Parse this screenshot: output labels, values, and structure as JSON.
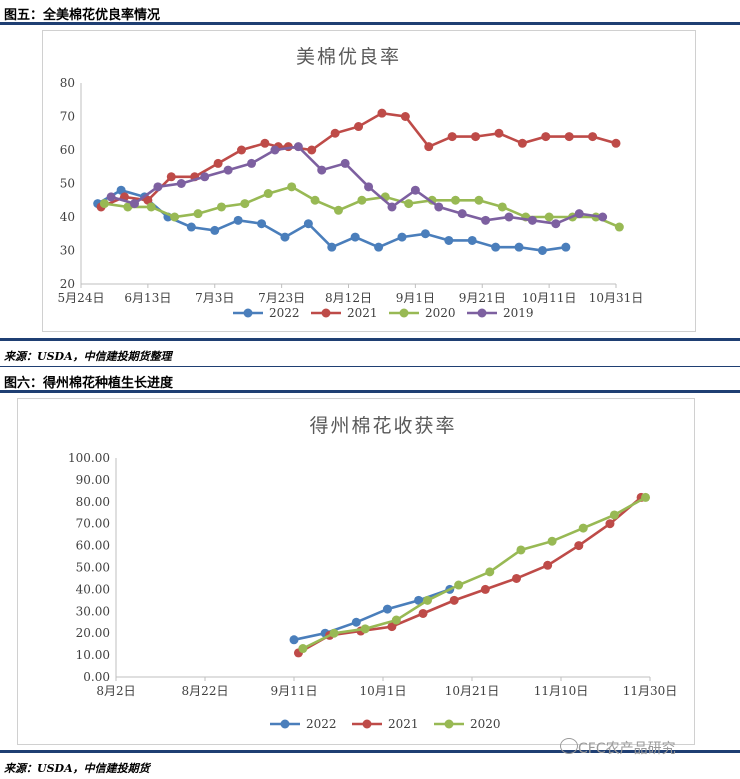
{
  "section1": {
    "figure_label": "图五：全美棉花优良率情况",
    "source": "来源：USDA，中信建投期货整理"
  },
  "section2": {
    "figure_label": "图六：得州棉花种植生长进度",
    "source": "来源：USDA，中信建投期货"
  },
  "watermark": "CFC农产品研究",
  "chart_data": [
    {
      "type": "line",
      "title": "美棉优良率",
      "xlabel": "",
      "ylabel": "",
      "x_ticks": [
        "5月24日",
        "6月13日",
        "7月3日",
        "7月23日",
        "8月12日",
        "9月1日",
        "9月21日",
        "10月11日",
        "10月31日"
      ],
      "x_range": [
        "5月24日",
        "10月31日"
      ],
      "ylim": [
        20,
        80
      ],
      "y_ticks": [
        20,
        30,
        40,
        50,
        60,
        70,
        80
      ],
      "grid": false,
      "legend": "bottom",
      "series": [
        {
          "name": "2022",
          "color": "#4a7ebb",
          "x": [
            "5月29日",
            "6月5日",
            "6月12日",
            "6月19日",
            "6月26日",
            "7月3日",
            "7月10日",
            "7月17日",
            "7月24日",
            "7月31日",
            "8月7日",
            "8月14日",
            "8月21日",
            "8月28日",
            "9月4日",
            "9月11日",
            "9月18日",
            "9月25日",
            "10月2日",
            "10月9日",
            "10月16日"
          ],
          "y": [
            44,
            48,
            46,
            40,
            37,
            36,
            39,
            38,
            34,
            38,
            31,
            34,
            31,
            34,
            35,
            33,
            33,
            31,
            31,
            30,
            31
          ]
        },
        {
          "name": "2021",
          "color": "#be4b48",
          "x": [
            "5月30日",
            "6月6日",
            "6月13日",
            "6月20日",
            "6月27日",
            "7月4日",
            "7月11日",
            "7月18日",
            "7月22日",
            "7月25日",
            "8月1日",
            "8月8日",
            "8月15日",
            "8月22日",
            "8月29日",
            "9月5日",
            "9月12日",
            "9月19日",
            "9月26日",
            "10月3日",
            "10月10日",
            "10月17日",
            "10月24日",
            "10月31日"
          ],
          "y": [
            43,
            46,
            45,
            52,
            52,
            56,
            60,
            62,
            61,
            61,
            60,
            65,
            67,
            71,
            70,
            61,
            64,
            64,
            65,
            62,
            64,
            64,
            64,
            62
          ]
        },
        {
          "name": "2020",
          "color": "#98b954",
          "x": [
            "5月31日",
            "6月7日",
            "6月14日",
            "6月21日",
            "6月28日",
            "7月5日",
            "7月12日",
            "7月19日",
            "7月26日",
            "8月2日",
            "8月9日",
            "8月16日",
            "8月23日",
            "8月30日",
            "9月6日",
            "9月13日",
            "9月20日",
            "9月27日",
            "10月4日",
            "10月11日",
            "10月18日",
            "10月25日",
            "11月1日"
          ],
          "y": [
            44,
            43,
            43,
            40,
            41,
            43,
            44,
            47,
            49,
            45,
            42,
            45,
            46,
            44,
            45,
            45,
            45,
            43,
            40,
            40,
            40,
            40,
            37
          ]
        },
        {
          "name": "2019",
          "color": "#7d60a0",
          "x": [
            "6月2日",
            "6月9日",
            "6月16日",
            "6月23日",
            "6月30日",
            "7月7日",
            "7月14日",
            "7月21日",
            "7月28日",
            "8月4日",
            "8月11日",
            "8月18日",
            "8月25日",
            "9月1日",
            "9月8日",
            "9月15日",
            "9月22日",
            "9月29日",
            "10月6日",
            "10月13日",
            "10月20日",
            "10月27日"
          ],
          "y": [
            46,
            44,
            49,
            50,
            52,
            54,
            56,
            60,
            61,
            54,
            56,
            49,
            43,
            48,
            43,
            41,
            39,
            40,
            39,
            38,
            41,
            40
          ]
        }
      ]
    },
    {
      "type": "line",
      "title": "得州棉花收获率",
      "xlabel": "",
      "ylabel": "",
      "x_ticks": [
        "8月2日",
        "8月22日",
        "9月11日",
        "10月1日",
        "10月21日",
        "11月10日",
        "11月30日"
      ],
      "x_range": [
        "8月2日",
        "11月30日"
      ],
      "ylim": [
        0,
        100
      ],
      "y_ticks": [
        "0.00",
        "10.00",
        "20.00",
        "30.00",
        "40.00",
        "50.00",
        "60.00",
        "70.00",
        "80.00",
        "90.00",
        "100.00"
      ],
      "grid": false,
      "legend": "bottom",
      "series": [
        {
          "name": "2022",
          "color": "#4a7ebb",
          "x": [
            "9月11日",
            "9月18日",
            "9月25日",
            "10月2日",
            "10月9日",
            "10月16日"
          ],
          "y": [
            17,
            20,
            25,
            31,
            35,
            40
          ]
        },
        {
          "name": "2021",
          "color": "#be4b48",
          "x": [
            "9月12日",
            "9月19日",
            "9月26日",
            "10月3日",
            "10月10日",
            "10月17日",
            "10月24日",
            "10月31日",
            "11月7日",
            "11月14日",
            "11月21日",
            "11月28日"
          ],
          "y": [
            11,
            19,
            21,
            23,
            29,
            35,
            40,
            45,
            51,
            60,
            70,
            82
          ]
        },
        {
          "name": "2020",
          "color": "#98b954",
          "x": [
            "9月13日",
            "9月20日",
            "9月27日",
            "10月4日",
            "10月11日",
            "10月18日",
            "10月25日",
            "11月1日",
            "11月8日",
            "11月15日",
            "11月22日",
            "11月29日"
          ],
          "y": [
            13,
            20,
            22,
            26,
            35,
            42,
            48,
            58,
            62,
            68,
            74,
            82
          ]
        }
      ]
    }
  ]
}
